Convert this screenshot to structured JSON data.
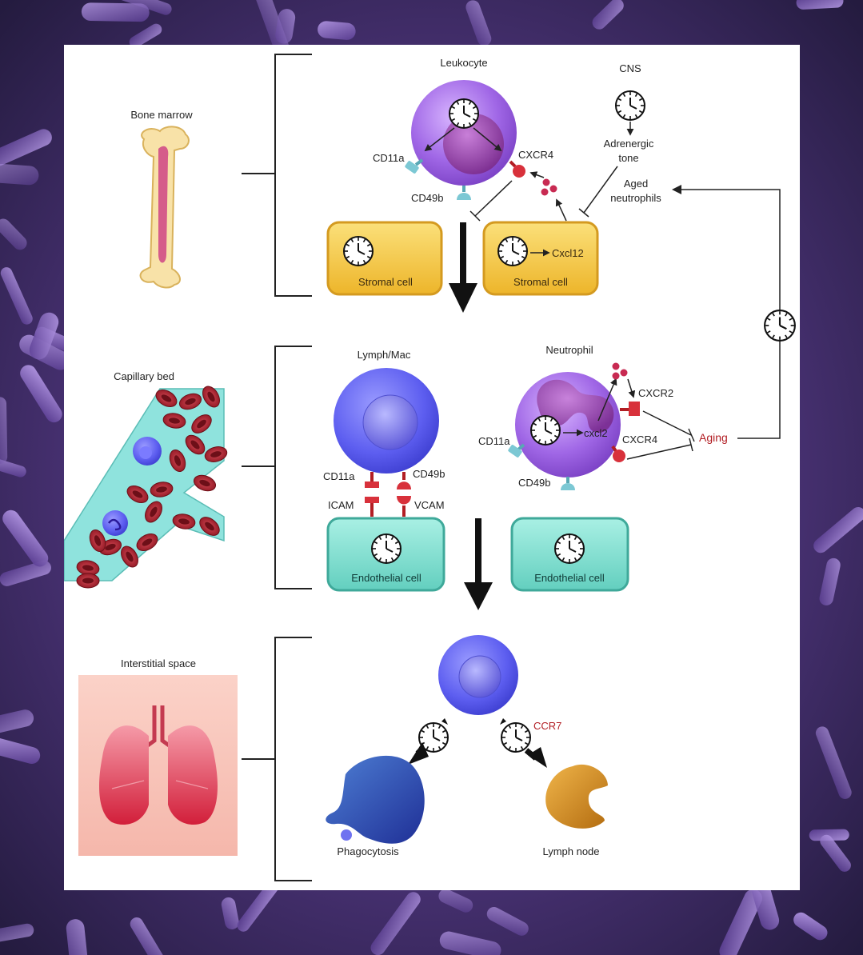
{
  "colors": {
    "background_purple": "#5b3f8f",
    "leukocyte_purple": "#a067e6",
    "lymph_blue": "#5d5ef0",
    "stromal_yellow": "#f3c43b",
    "endothelial_teal": "#7fe0d0",
    "receptor_red": "#d8313b",
    "aging_red": "#b21e24",
    "vessel_teal": "#8fe3dd",
    "rbc_red": "#9c1a26",
    "lung_pink": "#f7c2b8"
  },
  "sections": {
    "bone_marrow": {
      "label": "Bone marrow"
    },
    "capillary_bed": {
      "label": "Capillary bed"
    },
    "interstitial_space": {
      "label": "Interstitial space"
    }
  },
  "top": {
    "leukocyte": "Leukocyte",
    "cd11a": "CD11a",
    "cxcr4": "CXCR4",
    "cd49b": "CD49b",
    "cns": "CNS",
    "adrenergic_line1": "Adrenergic",
    "adrenergic_line2": "tone",
    "aged_line1": "Aged",
    "aged_line2": "neutrophils",
    "stromal_cell_1": "Stromal cell",
    "stromal_cell_2": "Stromal cell",
    "cxcl12": "Cxcl12"
  },
  "middle": {
    "lymph_mac": "Lymph/Mac",
    "neutrophil": "Neutrophil",
    "cd11a_left": "CD11a",
    "cd49b_left": "CD49b",
    "icam": "ICAM",
    "vcam": "VCAM",
    "endothelial_cell_1": "Endothelial cell",
    "endothelial_cell_2": "Endothelial cell",
    "cxcr2": "CXCR2",
    "cxcl2": "cxcl2",
    "cd11a_right": "CD11a",
    "cxcr4": "CXCR4",
    "cd49b_right": "CD49b",
    "aging": "Aging"
  },
  "bottom": {
    "ccr7": "CCR7",
    "phagocytosis": "Phagocytosis",
    "lymph_node": "Lymph node"
  },
  "icons": [
    "circadian-clock-icon",
    "arrow-icon",
    "inhibition-bar-icon",
    "bracket-icon",
    "receptor-icon"
  ]
}
